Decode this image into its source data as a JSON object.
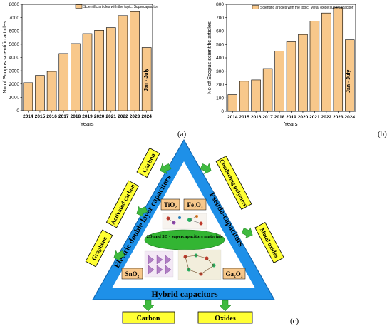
{
  "chart_data": [
    {
      "type": "bar",
      "title": "",
      "legend": "Scientific articles with the topic: Supercapacitor",
      "legend_position": "top-left",
      "xlabel": "Years",
      "ylabel": "No of Scopus scientific articles",
      "categories": [
        "2014",
        "2015",
        "2016",
        "2017",
        "2018",
        "2019",
        "2020",
        "2021",
        "2022",
        "2023",
        "2024"
      ],
      "values": [
        2100,
        2650,
        2950,
        4300,
        5050,
        5800,
        6050,
        6250,
        7150,
        7450,
        4750
      ],
      "ylim": [
        0,
        8000
      ],
      "yticks": [
        0,
        1000,
        2000,
        3000,
        4000,
        5000,
        6000,
        7000,
        8000
      ],
      "annotation": "Jan - July",
      "bar_color": "#f8c88b",
      "panel_label": "(a)"
    },
    {
      "type": "bar",
      "title": "",
      "legend": "Scientific articles with the topic: Metal oxide supercapacitor",
      "legend_position": "top-left",
      "xlabel": "Years",
      "ylabel": "No of Scopus scientific articles",
      "categories": [
        "2014",
        "2015",
        "2016",
        "2017",
        "2018",
        "2019",
        "2020",
        "2021",
        "2022",
        "2023",
        "2024"
      ],
      "values": [
        125,
        225,
        235,
        320,
        450,
        520,
        575,
        675,
        735,
        775,
        535
      ],
      "ylim": [
        0,
        800
      ],
      "yticks": [
        0,
        100,
        200,
        300,
        400,
        500,
        600,
        700,
        800
      ],
      "annotation": "Jan - July",
      "bar_color": "#f8c88b",
      "panel_label": "(b)"
    }
  ],
  "diagram": {
    "panel_label": "(c)",
    "left_side": "Electric double layer capacitors",
    "right_side": "Pseudo-capacitors",
    "bottom_side": "Hybrid capacitors",
    "center_label": "2D and 3D - supercapacitors materials",
    "left_boxes": [
      "Carbon",
      "Activated carbon",
      "Graphene"
    ],
    "right_boxes": [
      "Conducting polymers",
      "Metal oxides"
    ],
    "bottom_boxes": [
      "Carbon",
      "Oxides"
    ],
    "materials": [
      "TiO₂",
      "Fe₂O₃",
      "SnO₂",
      "Ga₂O₃"
    ],
    "colors": {
      "triangle": "#1e90e8",
      "triangle_inner": "#ffffff",
      "box": "#ffff33",
      "arrow": "#3fba3f",
      "center": "#33b533",
      "material_box": "#f8c88b"
    }
  }
}
